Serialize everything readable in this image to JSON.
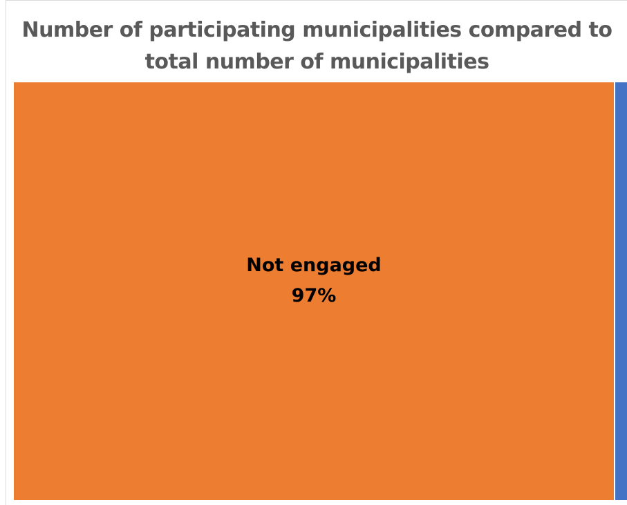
{
  "chart_data": {
    "type": "treemap",
    "title": "Number of participating municipalities compared to total number of municipalities",
    "series": [
      {
        "name": "Not engaged",
        "value": 97,
        "value_label": "97%",
        "color": "#ED7D31"
      },
      {
        "name": "",
        "value": 3,
        "value_label": "",
        "color": "#4472C4"
      }
    ],
    "grid": false,
    "legend": "none"
  }
}
